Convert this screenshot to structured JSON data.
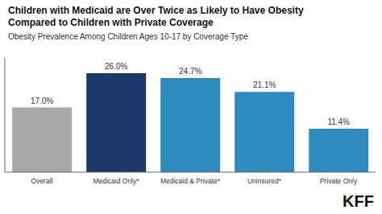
{
  "chart_data": {
    "type": "bar",
    "title": "Children with Medicaid are Over Twice as Likely to Have Obesity\nCompared to Children with Private Coverage",
    "subtitle": "Obesity Prevalence Among Children Ages 10-17 by Coverage Type",
    "annotations": [
      "KFF"
    ],
    "categories": [
      "Overall",
      "Medicaid Only*",
      "Medicaid & Private*",
      "Uninsured*",
      "Private Only"
    ],
    "values": [
      17.0,
      26.0,
      24.7,
      21.1,
      11.4
    ],
    "value_labels": [
      "17.0%",
      "26.0%",
      "24.7%",
      "21.1%",
      "11.4%"
    ],
    "colors": [
      "#a8a8a8",
      "#1b3a6b",
      "#2e8bc0",
      "#2e8bc0",
      "#2e8bc0"
    ],
    "ylim": [
      0,
      30
    ],
    "grid": false,
    "data_labels": true,
    "tick_labels": "x"
  }
}
